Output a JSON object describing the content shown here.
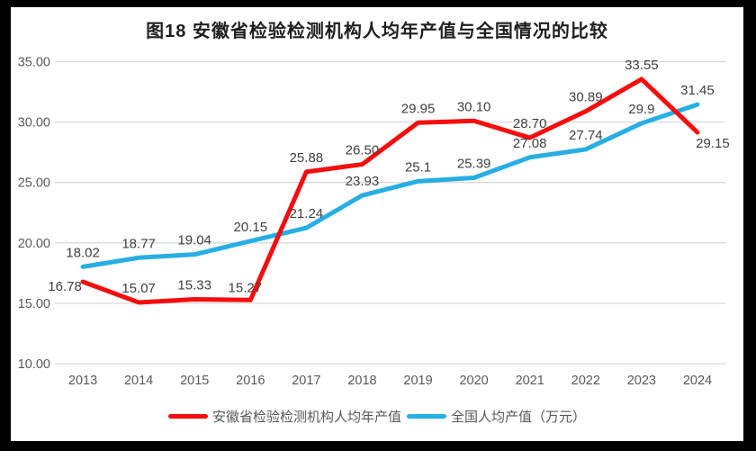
{
  "title": "图18 安徽省检验检测机构人均年产值与全国情况的比较",
  "colors": {
    "anhui": "#f50d0d",
    "national": "#27aee4",
    "gridline": "#d9d9d9",
    "axis_text": "#595959",
    "label_text": "#404040",
    "title_text": "#1f1f1f",
    "frame": "#000000",
    "background": "#ffffff"
  },
  "chart_data": {
    "type": "line",
    "categories": [
      "2013",
      "2014",
      "2015",
      "2016",
      "2017",
      "2018",
      "2019",
      "2020",
      "2021",
      "2022",
      "2023",
      "2024"
    ],
    "series": [
      {
        "name": "安徽省检验检测机构人均年产值",
        "color_key": "anhui",
        "values": [
          16.78,
          15.07,
          15.33,
          15.27,
          25.88,
          26.5,
          29.95,
          30.1,
          28.7,
          30.89,
          33.55,
          29.15
        ],
        "labels": [
          "16.78",
          "15.07",
          "15.33",
          "15.27",
          "25.88",
          "26.50",
          "29.95",
          "30.10",
          "28.70",
          "30.89",
          "33.55",
          "29.15"
        ]
      },
      {
        "name": "全国人均产值（万元）",
        "color_key": "national",
        "values": [
          18.02,
          18.77,
          19.04,
          20.15,
          21.24,
          23.93,
          25.1,
          25.39,
          27.08,
          27.74,
          29.9,
          31.45
        ],
        "labels": [
          "18.02",
          "18.77",
          "19.04",
          "20.15",
          "21.24",
          "23.93",
          "25.1",
          "25.39",
          "27.08",
          "27.74",
          "29.9",
          "31.45"
        ]
      }
    ],
    "y_ticks": [
      "10.00",
      "15.00",
      "20.00",
      "25.00",
      "30.00",
      "35.00"
    ],
    "ylim": [
      10,
      35
    ],
    "grid": true,
    "data_labels": true,
    "legend_position": "bottom",
    "label_offsets": {
      "0": {
        "0": [
          -20,
          21
        ],
        "3": [
          -6,
          2
        ],
        "11": [
          17,
          28
        ]
      }
    }
  }
}
